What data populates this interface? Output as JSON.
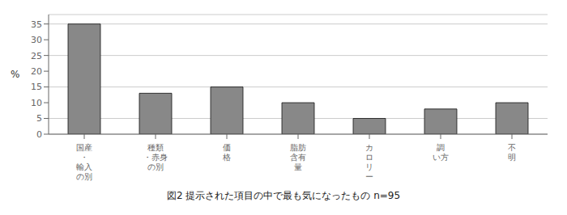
{
  "chart_data": {
    "type": "bar",
    "caption": "図2  提示された項目の中で最も気になったもの  n=95",
    "ylabel": "%",
    "categories": [
      "国産\n・\n輸入\nの別",
      "種類\n・赤身\nの別",
      "価\n格",
      "脂肪\n含有\n量",
      "カ\nロ\nリ\nー",
      "調\nい方",
      "不\n明"
    ],
    "values": [
      35,
      13,
      15,
      10,
      5,
      8,
      10
    ],
    "color": "#888888",
    "ylim": [
      0,
      38
    ],
    "yticks": [
      0,
      5,
      10,
      15,
      20,
      25,
      30,
      35
    ],
    "grid": true
  }
}
